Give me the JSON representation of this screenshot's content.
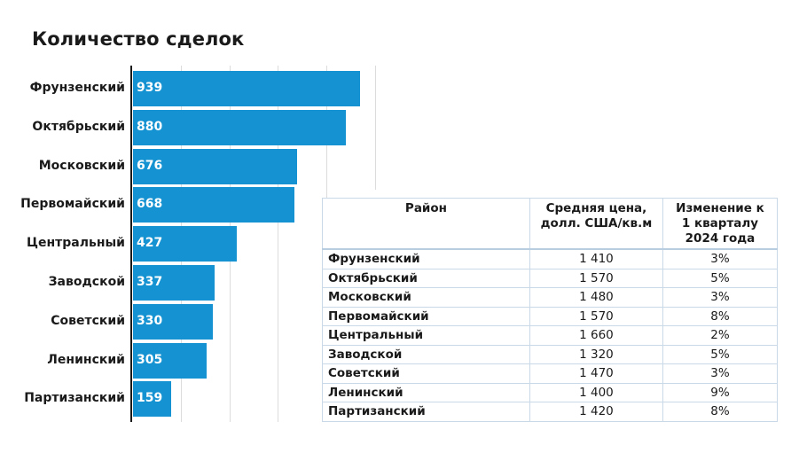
{
  "title": "Количество сделок",
  "chart_data": {
    "type": "bar",
    "orientation": "horizontal",
    "title": "Количество сделок",
    "categories": [
      "Фрунзенский",
      "Октябрьский",
      "Московский",
      "Первомайский",
      "Центральный",
      "Заводской",
      "Советский",
      "Ленинский",
      "Партизанский"
    ],
    "values": [
      939,
      880,
      676,
      668,
      427,
      337,
      330,
      305,
      159
    ],
    "xlabel": "",
    "ylabel": "",
    "xlim": [
      0,
      1000
    ],
    "grid": true,
    "gridline_step": 200,
    "bar_color": "#1592d1",
    "data_labels": true
  },
  "bars": [
    {
      "label": "Фрунзенский",
      "value": "939"
    },
    {
      "label": "Октябрьский",
      "value": "880"
    },
    {
      "label": "Московский",
      "value": "676"
    },
    {
      "label": "Первомайский",
      "value": "668"
    },
    {
      "label": "Центральный",
      "value": "427"
    },
    {
      "label": "Заводской",
      "value": "337"
    },
    {
      "label": "Советский",
      "value": "330"
    },
    {
      "label": "Ленинский",
      "value": "305"
    },
    {
      "label": "Партизанский",
      "value": "159"
    }
  ],
  "table": {
    "headers": [
      "Район",
      "Средняя цена, долл. США/кв.м",
      "Изменение к 1 кварталу 2024 года"
    ],
    "header_lines": {
      "col2": [
        "Средняя цена,",
        "долл. США/кв.м"
      ],
      "col3": [
        "Изменение к",
        "1 кварталу",
        "2024 года"
      ]
    },
    "rows": [
      {
        "district": "Фрунзенский",
        "price": "1 410",
        "change": "3%"
      },
      {
        "district": "Октябрьский",
        "price": "1 570",
        "change": "5%"
      },
      {
        "district": "Московский",
        "price": "1 480",
        "change": "3%"
      },
      {
        "district": "Первомайский",
        "price": "1 570",
        "change": "8%"
      },
      {
        "district": "Центральный",
        "price": "1 660",
        "change": "2%"
      },
      {
        "district": "Заводской",
        "price": "1 320",
        "change": "5%"
      },
      {
        "district": "Советский",
        "price": "1 470",
        "change": "3%"
      },
      {
        "district": "Ленинский",
        "price": "1 400",
        "change": "9%"
      },
      {
        "district": "Партизанский",
        "price": "1 420",
        "change": "8%"
      }
    ]
  }
}
